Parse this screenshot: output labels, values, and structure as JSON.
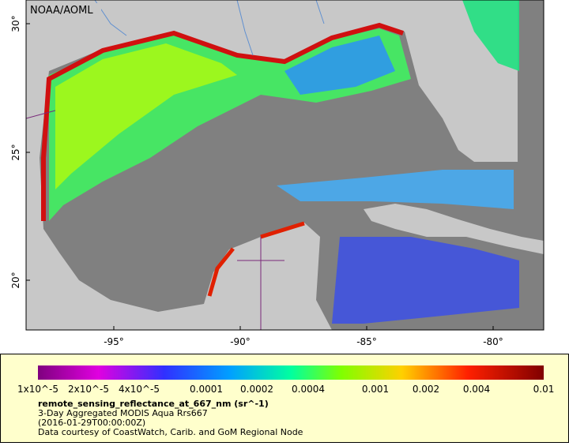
{
  "map": {
    "credit": "NOAA/AOML",
    "lat_ticks": [
      "30°",
      "25°",
      "20°"
    ],
    "lon_ticks": [
      "-95°",
      "-90°",
      "-85°",
      "-80°"
    ]
  },
  "legend": {
    "ticks": [
      "1x10^-5",
      "2x10^-5",
      "4x10^-5",
      "0.0001",
      "0.0002",
      "0.0004",
      "0.001",
      "0.002",
      "0.004",
      "0.01"
    ],
    "variable": "remote_sensing_reflectance_at_667_nm (sr^-1)",
    "description": "3-Day Aggregated MODIS Aqua Rrs667",
    "time": "(2016-01-29T00:00:00Z)",
    "source": "Data courtesy of CoastWatch, Carib. and GoM Regional Node"
  }
}
